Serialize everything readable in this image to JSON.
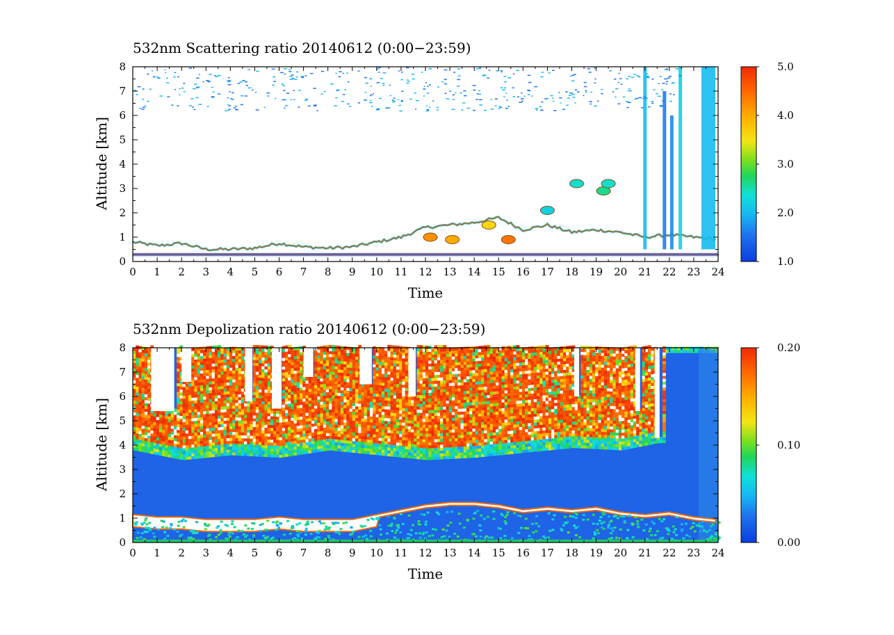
{
  "chart_data": [
    {
      "type": "heatmap",
      "title": "532nm Scattering ratio  20140612 (0:00−23:59)",
      "xlabel": "Time",
      "ylabel": "Altitude [km]",
      "xlim": [
        0,
        24
      ],
      "ylim": [
        0,
        8
      ],
      "x_ticks": [
        "0",
        "1",
        "2",
        "3",
        "4",
        "5",
        "6",
        "7",
        "8",
        "9",
        "10",
        "11",
        "12",
        "13",
        "14",
        "15",
        "16",
        "17",
        "18",
        "19",
        "20",
        "21",
        "22",
        "23",
        "24"
      ],
      "y_ticks": [
        "0",
        "1",
        "2",
        "3",
        "4",
        "5",
        "6",
        "7",
        "8"
      ],
      "colorbar": {
        "range": [
          1.0,
          5.0
        ],
        "tick_labels": [
          "5.0",
          "4.0",
          "3.0",
          "2.0",
          "1.0"
        ],
        "tick_values": [
          5.0,
          4.0,
          3.0,
          2.0,
          1.0
        ]
      },
      "features": {
        "boundary_layer_top_km": [
          [
            0,
            0.8
          ],
          [
            1,
            0.65
          ],
          [
            2,
            0.75
          ],
          [
            3,
            0.5
          ],
          [
            4,
            0.5
          ],
          [
            5,
            0.55
          ],
          [
            6,
            0.75
          ],
          [
            7,
            0.6
          ],
          [
            8,
            0.55
          ],
          [
            9,
            0.6
          ],
          [
            10,
            0.8
          ],
          [
            11,
            1.0
          ],
          [
            12,
            1.4
          ],
          [
            13,
            1.5
          ],
          [
            14,
            1.6
          ],
          [
            15,
            1.8
          ],
          [
            16,
            1.3
          ],
          [
            17,
            1.5
          ],
          [
            18,
            1.2
          ],
          [
            19,
            1.3
          ],
          [
            20,
            1.2
          ],
          [
            21,
            1.0
          ],
          [
            22,
            1.1
          ],
          [
            23,
            1.0
          ],
          [
            24,
            0.9
          ]
        ],
        "cloud_patches": [
          [
            12.2,
            1.0,
            4.2
          ],
          [
            13.1,
            0.9,
            4.0
          ],
          [
            14.6,
            1.5,
            3.6
          ],
          [
            15.4,
            0.9,
            4.4
          ],
          [
            17.0,
            2.1,
            2.2
          ],
          [
            18.2,
            3.2,
            2.4
          ],
          [
            19.3,
            2.9,
            2.6
          ],
          [
            19.5,
            3.2,
            2.4
          ]
        ],
        "columns": [
          [
            21.0,
            8.0,
            2.0
          ],
          [
            21.8,
            7.0,
            1.6
          ],
          [
            22.1,
            6.0,
            1.7
          ],
          [
            22.45,
            8.0,
            2.2
          ],
          [
            23.6,
            8.0,
            2.0
          ]
        ]
      }
    },
    {
      "type": "heatmap",
      "title": "532nm Depolization ratio  20140612 (0:00−23:59)",
      "xlabel": "Time",
      "ylabel": "Altitude [km]",
      "xlim": [
        0,
        24
      ],
      "ylim": [
        0,
        8
      ],
      "x_ticks": [
        "0",
        "1",
        "2",
        "3",
        "4",
        "5",
        "6",
        "7",
        "8",
        "9",
        "10",
        "11",
        "12",
        "13",
        "14",
        "15",
        "16",
        "17",
        "18",
        "19",
        "20",
        "21",
        "22",
        "23",
        "24"
      ],
      "y_ticks": [
        "0",
        "1",
        "2",
        "3",
        "4",
        "5",
        "6",
        "7",
        "8"
      ],
      "colorbar": {
        "range": [
          0.0,
          0.2
        ],
        "tick_labels": [
          "0.20",
          "0.10",
          "0.00"
        ],
        "tick_values": [
          0.2,
          0.1,
          0.0
        ]
      },
      "features": {
        "high_noise_base_km": [
          [
            0,
            4.2
          ],
          [
            2,
            3.8
          ],
          [
            4,
            4.0
          ],
          [
            6,
            3.9
          ],
          [
            8,
            4.2
          ],
          [
            10,
            4.0
          ],
          [
            12,
            3.8
          ],
          [
            14,
            3.9
          ],
          [
            16,
            4.1
          ],
          [
            18,
            4.3
          ],
          [
            20,
            4.2
          ],
          [
            21.5,
            4.5
          ]
        ],
        "clear_gaps_hours": [
          [
            0.75,
            1.7,
            5.4
          ],
          [
            2.0,
            2.4,
            6.6
          ],
          [
            4.6,
            4.9,
            5.8
          ],
          [
            5.7,
            6.1,
            5.5
          ],
          [
            7.0,
            7.4,
            6.8
          ],
          [
            9.3,
            9.8,
            6.5
          ],
          [
            11.3,
            11.6,
            6.0
          ],
          [
            18.1,
            18.3,
            6.0
          ],
          [
            20.6,
            20.8,
            5.4
          ],
          [
            21.4,
            21.6,
            4.3
          ]
        ],
        "boundary_layer_top_km": [
          [
            0,
            1.1
          ],
          [
            1,
            1.0
          ],
          [
            2,
            1.0
          ],
          [
            3,
            0.9
          ],
          [
            4,
            0.9
          ],
          [
            5,
            0.9
          ],
          [
            6,
            1.0
          ],
          [
            7,
            0.9
          ],
          [
            8,
            0.9
          ],
          [
            9,
            0.9
          ],
          [
            10,
            1.1
          ],
          [
            11,
            1.3
          ],
          [
            12,
            1.5
          ],
          [
            13,
            1.6
          ],
          [
            14,
            1.6
          ],
          [
            15,
            1.5
          ],
          [
            16,
            1.3
          ],
          [
            17,
            1.4
          ],
          [
            18,
            1.3
          ],
          [
            19,
            1.4
          ],
          [
            20,
            1.2
          ],
          [
            21,
            1.1
          ],
          [
            22,
            1.2
          ],
          [
            23,
            1.0
          ],
          [
            24,
            0.9
          ]
        ]
      }
    }
  ]
}
